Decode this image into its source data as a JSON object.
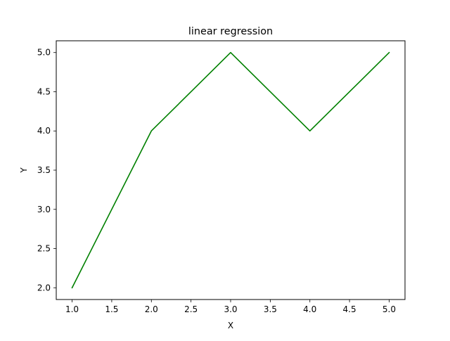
{
  "chart_data": {
    "type": "line",
    "title": "linear regression",
    "xlabel": "X",
    "ylabel": "Y",
    "xlim": [
      0.8,
      5.2
    ],
    "ylim": [
      1.85,
      5.15
    ],
    "x_ticks": [
      1.0,
      1.5,
      2.0,
      2.5,
      3.0,
      3.5,
      4.0,
      4.5,
      5.0
    ],
    "x_tick_labels": [
      "1.0",
      "1.5",
      "2.0",
      "2.5",
      "3.0",
      "3.5",
      "4.0",
      "4.5",
      "5.0"
    ],
    "y_ticks": [
      2.0,
      2.5,
      3.0,
      3.5,
      4.0,
      4.5,
      5.0
    ],
    "y_tick_labels": [
      "2.0",
      "2.5",
      "3.0",
      "3.5",
      "4.0",
      "4.5",
      "5.0"
    ],
    "grid": false,
    "legend": "none",
    "series": [
      {
        "x": [
          1,
          2,
          3,
          4,
          5
        ],
        "y": [
          2,
          4,
          5,
          4,
          5
        ],
        "color": "#008000"
      }
    ]
  }
}
